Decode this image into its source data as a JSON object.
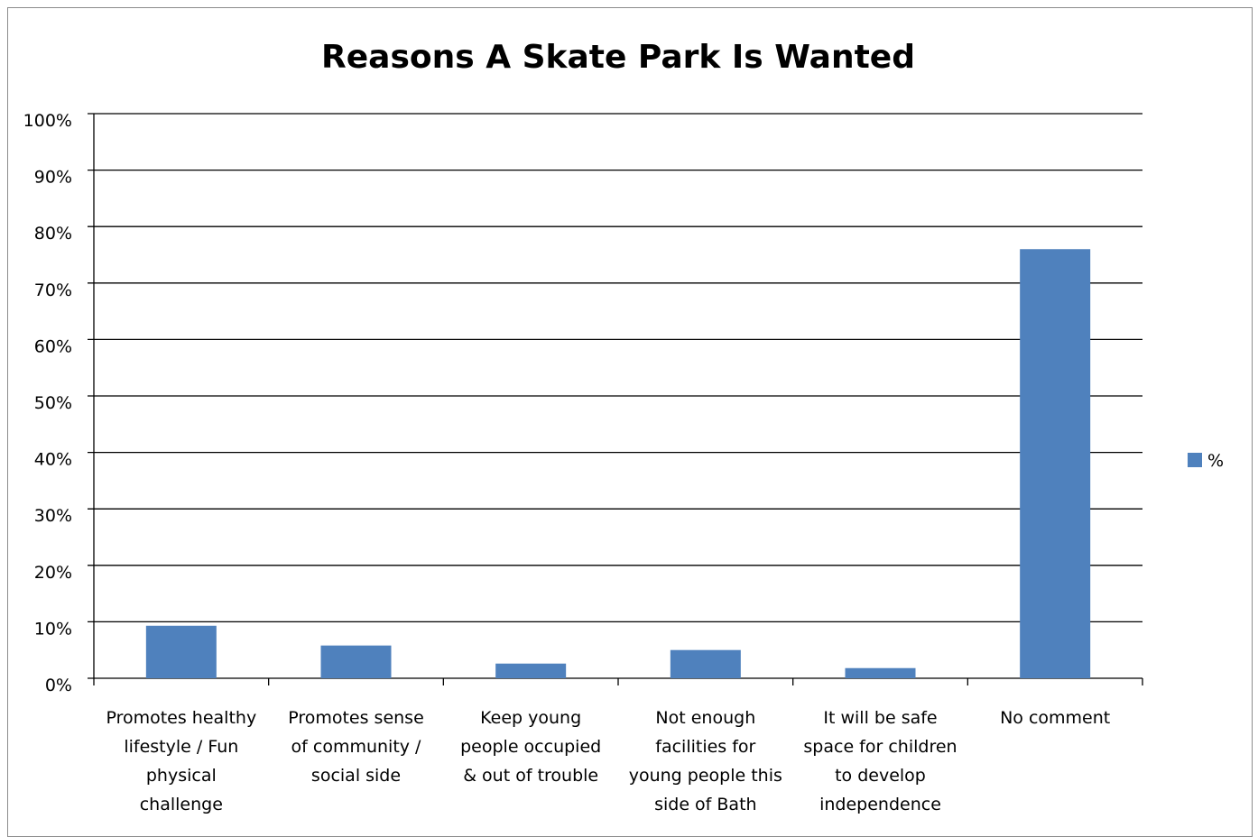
{
  "chart_data": {
    "type": "bar",
    "title": "Reasons A Skate Park Is Wanted",
    "xlabel": "",
    "ylabel": "",
    "ylim": [
      0,
      100
    ],
    "yticks": [
      "0%",
      "10%",
      "20%",
      "30%",
      "40%",
      "50%",
      "60%",
      "70%",
      "80%",
      "90%",
      "100%"
    ],
    "categories": [
      [
        "Promotes healthy",
        "lifestyle / Fun",
        "physical",
        "challenge"
      ],
      [
        "Promotes sense",
        "of community /",
        "social side"
      ],
      [
        "Keep young",
        "people occupied",
        "& out of trouble"
      ],
      [
        "Not enough",
        "facilities for",
        "young people this",
        "side of Bath"
      ],
      [
        "It will be safe",
        "space for children",
        "to develop",
        "independence"
      ],
      [
        "No comment"
      ]
    ],
    "series": [
      {
        "name": "%",
        "color": "#4f81bd",
        "values": [
          9.3,
          5.8,
          2.6,
          5.0,
          1.8,
          76.0
        ]
      }
    ],
    "grid": true,
    "legend": "right"
  }
}
